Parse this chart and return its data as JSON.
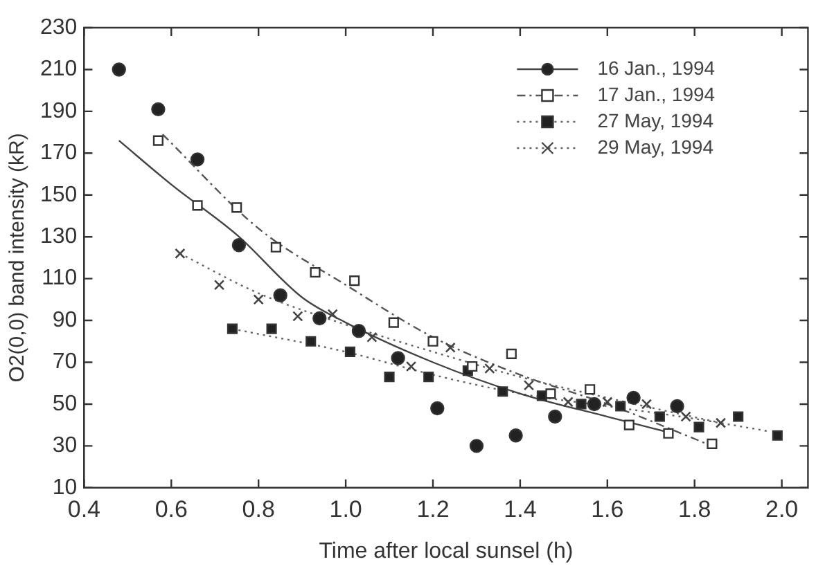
{
  "chart_data": {
    "type": "scatter",
    "xlabel": "Time after local sunsel (h)",
    "ylabel": "O2(0,0) band intensity (kR)",
    "xlim": [
      0.4,
      2.06
    ],
    "xticks": [
      {
        "value": 0.4,
        "label": "0.4"
      },
      {
        "value": 0.6,
        "label": "0.6"
      },
      {
        "value": 0.8,
        "label": "0.8"
      },
      {
        "value": 1.0,
        "label": "1.0"
      },
      {
        "value": 1.2,
        "label": "1.2"
      },
      {
        "value": 1.4,
        "label": "1.4"
      },
      {
        "value": 1.6,
        "label": "1.6"
      },
      {
        "value": 1.8,
        "label": "1.8"
      },
      {
        "value": 2.0,
        "label": "2.0"
      }
    ],
    "ylim": [
      10,
      230
    ],
    "yticks": [
      10,
      30,
      50,
      70,
      90,
      110,
      130,
      150,
      170,
      190,
      210,
      230
    ],
    "grid": false,
    "legend": "top right",
    "series": [
      {
        "name": "16 Jan., 1994",
        "marker": "circle",
        "line_style": "solid",
        "color": "#222222",
        "x": [
          0.48,
          0.57,
          0.66,
          0.755,
          0.85,
          0.94,
          1.03,
          1.12,
          1.21,
          1.3,
          1.39,
          1.48,
          1.57,
          1.66,
          1.76
        ],
        "values": [
          210,
          191,
          167,
          126,
          102,
          91,
          85,
          72,
          48,
          30,
          35,
          44,
          50,
          53,
          49
        ]
      },
      {
        "type": "line",
        "line_style": "solid",
        "color": "#444444",
        "x": [
          0.48,
          0.6,
          0.75,
          0.9,
          1.0,
          1.2,
          1.4,
          1.6,
          1.75
        ],
        "values": [
          176,
          155,
          131,
          101,
          89,
          70,
          55,
          44,
          36
        ]
      },
      {
        "name": "17 Jan., 1994",
        "marker": "square",
        "line_style": "dashed",
        "color": "#ffffff",
        "x": [
          0.57,
          0.66,
          0.75,
          0.84,
          0.93,
          1.02,
          1.11,
          1.2,
          1.29,
          1.38,
          1.47,
          1.56,
          1.65,
          1.74,
          1.84
        ],
        "values": [
          176,
          145,
          144,
          125,
          113,
          109,
          89,
          80,
          68,
          74,
          55,
          57,
          40,
          36,
          31
        ]
      },
      {
        "type": "line",
        "line_style": "dashed",
        "color": "#555555",
        "x": [
          0.58,
          0.8,
          1.0,
          1.2,
          1.4,
          1.6,
          1.84
        ],
        "values": [
          179,
          134,
          107,
          82,
          64,
          50,
          30
        ]
      },
      {
        "name": "27 May, 1994",
        "marker": "square",
        "line_style": "dotted",
        "color": "#222222",
        "x": [
          0.74,
          0.83,
          0.92,
          1.01,
          1.1,
          1.19,
          1.28,
          1.36,
          1.45,
          1.54,
          1.63,
          1.72,
          1.81,
          1.9,
          1.99
        ],
        "values": [
          86,
          86,
          80,
          75,
          63,
          63,
          66,
          56,
          54,
          50,
          49,
          44,
          39,
          44,
          35
        ]
      },
      {
        "type": "line",
        "line_style": "dotted",
        "color": "#666666",
        "x": [
          0.74,
          1.0,
          1.2,
          1.4,
          1.6,
          1.8,
          1.97
        ],
        "values": [
          86,
          75,
          64,
          55,
          49,
          43,
          37
        ]
      },
      {
        "name": "29 May, 1994",
        "marker": "cross",
        "line_style": "dotted",
        "color": "#444444",
        "x": [
          0.62,
          0.71,
          0.8,
          0.89,
          0.97,
          1.06,
          1.15,
          1.24,
          1.33,
          1.42,
          1.51,
          1.6,
          1.69,
          1.78,
          1.86
        ],
        "values": [
          122,
          107,
          100,
          92,
          93,
          82,
          68,
          77,
          67,
          59,
          51,
          51,
          50,
          44,
          41
        ]
      },
      {
        "type": "line",
        "line_style": "dotted",
        "color": "#666666",
        "x": [
          0.62,
          0.8,
          1.0,
          1.2,
          1.4,
          1.6,
          1.86
        ],
        "values": [
          122,
          103,
          88,
          75,
          63,
          53,
          41
        ]
      }
    ]
  }
}
